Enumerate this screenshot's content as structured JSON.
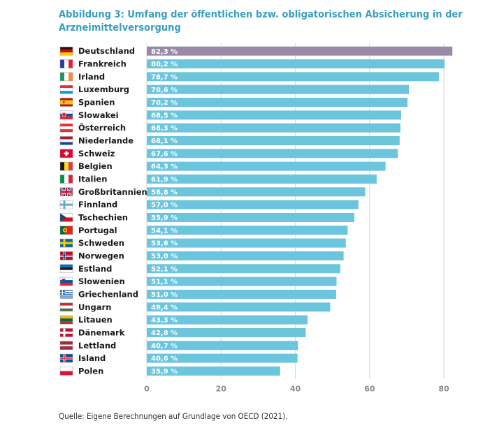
{
  "figure": {
    "title": "Abbildung 3: Umfang der öffentlichen bzw. obligatorischen Absicherung in der Arzneimittelversorgung",
    "source": "Quelle: Eigene Berechnungen auf Grundlage von OECD (2021)."
  },
  "colors": {
    "bar": "#6bc5dd",
    "highlight_bar": "#9a8aa8",
    "grid": "#d9d9d9",
    "tick_text": "#8a8a8a"
  },
  "chart_data": {
    "type": "bar",
    "orientation": "horizontal",
    "categories": [
      "Deutschland",
      "Frankreich",
      "Irland",
      "Luxemburg",
      "Spanien",
      "Slowakei",
      "Österreich",
      "Niederlande",
      "Schweiz",
      "Belgien",
      "Italien",
      "Großbritannien",
      "Finnland",
      "Tschechien",
      "Portugal",
      "Schweden",
      "Norwegen",
      "Estland",
      "Slowenien",
      "Griechenland",
      "Ungarn",
      "Litauen",
      "Dänemark",
      "Lettland",
      "Island",
      "Polen"
    ],
    "values": [
      82.3,
      80.2,
      78.7,
      70.6,
      70.2,
      68.5,
      68.3,
      68.1,
      67.6,
      64.3,
      61.9,
      58.8,
      57.0,
      55.9,
      54.1,
      53.6,
      53.0,
      52.1,
      51.1,
      51.0,
      49.4,
      43.3,
      42.8,
      40.7,
      40.6,
      35.9
    ],
    "value_labels": [
      "82,3 %",
      "80,2 %",
      "78,7 %",
      "70,6 %",
      "70,2 %",
      "68,5 %",
      "68,3 %",
      "68,1 %",
      "67,6 %",
      "64,3 %",
      "61,9 %",
      "58,8 %",
      "57,0 %",
      "55,9 %",
      "54,1 %",
      "53,6 %",
      "53,0 %",
      "52,1 %",
      "51,1 %",
      "51,0 %",
      "49,4 %",
      "43,3 %",
      "42,8 %",
      "40,7 %",
      "40,6 %",
      "35,9 %"
    ],
    "flags": [
      "germany-flag",
      "france-flag",
      "ireland-flag",
      "luxembourg-flag",
      "spain-flag",
      "slovakia-flag",
      "austria-flag",
      "netherlands-flag",
      "switzerland-flag",
      "belgium-flag",
      "italy-flag",
      "uk-flag",
      "finland-flag",
      "czechia-flag",
      "portugal-flag",
      "sweden-flag",
      "norway-flag",
      "estonia-flag",
      "slovenia-flag",
      "greece-flag",
      "hungary-flag",
      "lithuania-flag",
      "denmark-flag",
      "latvia-flag",
      "iceland-flag",
      "poland-flag"
    ],
    "highlight": "Deutschland",
    "xlim": [
      0,
      85
    ],
    "xticks": [
      0,
      20,
      40,
      60,
      80
    ],
    "grid": true,
    "legend": false
  }
}
